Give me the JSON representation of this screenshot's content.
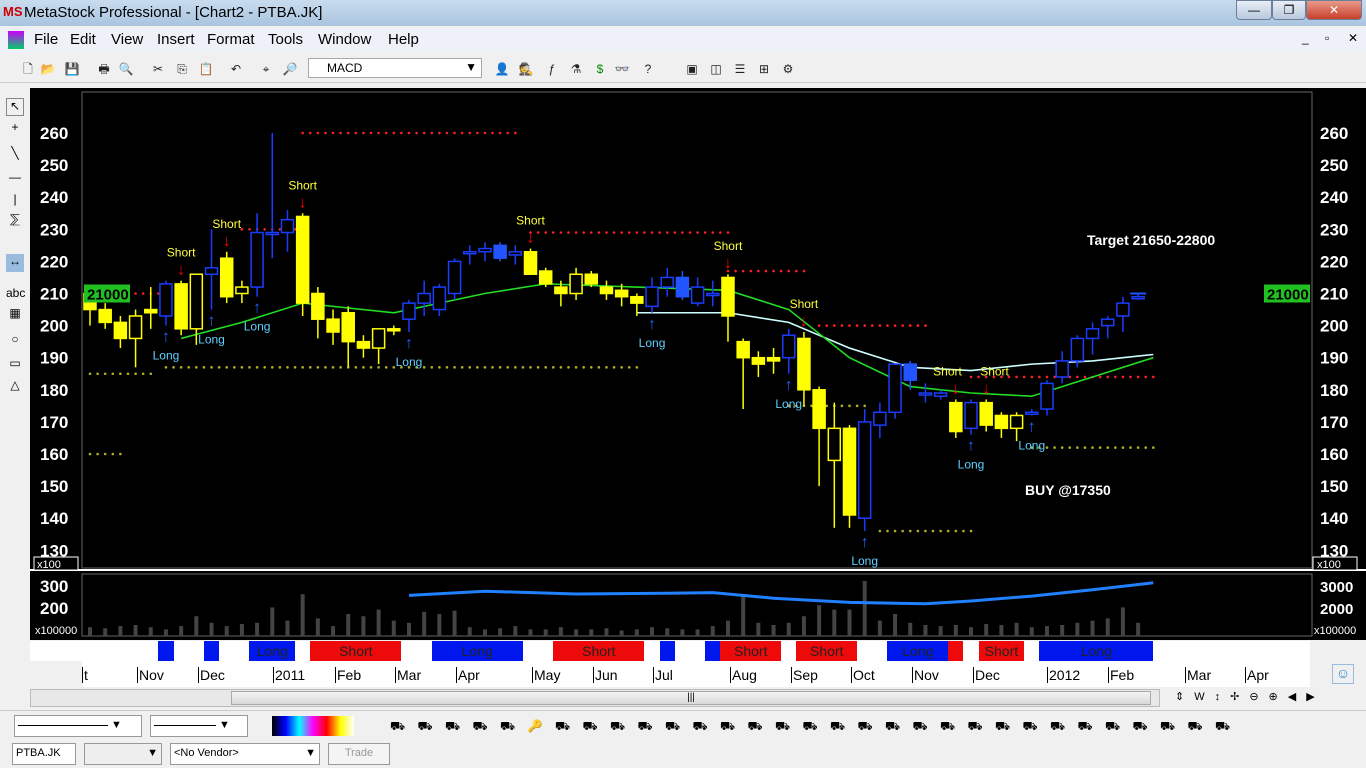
{
  "window": {
    "title": "MetaStock Professional - [Chart2 - PTBA.JK]",
    "min": "—",
    "max": "❐",
    "close": "✕"
  },
  "menu": [
    "File",
    "Edit",
    "View",
    "Insert",
    "Format",
    "Tools",
    "Window",
    "Help"
  ],
  "toolbar": {
    "indicator_select": "MACD",
    "icons": [
      "new-icon",
      "open-icon",
      "save-icon",
      "print-icon",
      "print-preview-icon",
      "cut-icon",
      "copy-icon",
      "paste-icon",
      "undo-icon",
      "crosshair-icon",
      "zoom-icon",
      "expert-icon",
      "explorer-icon",
      "function-icon",
      "system-tester-icon",
      "dollar-icon",
      "binoculars-icon",
      "help-pointer-icon",
      "cascade-icon",
      "tile-vertical-icon",
      "tile-horizontal-icon",
      "tile-grid-icon",
      "options-icon"
    ]
  },
  "chart": {
    "price_scale_label": "x100",
    "volume_scale_label": "x100000",
    "current_price": "21000",
    "price_ticks": [
      "260",
      "250",
      "240",
      "230",
      "220",
      "210",
      "200",
      "190",
      "180",
      "170",
      "160",
      "150",
      "140",
      "130"
    ],
    "volume_ticks_left": [
      "300",
      "200"
    ],
    "volume_ticks_right": [
      "3000",
      "2000"
    ],
    "annotations": {
      "target": "Target 21650-22800",
      "buy": "BUY @17350"
    },
    "colors": {
      "down_candle": "#ffff00",
      "up_candle": "#0040ff",
      "ma_green": "#22dd22",
      "ma_white": "#ccffff",
      "short": "#ff0000",
      "long": "#0050ff",
      "obv": "#2080ff"
    }
  },
  "chart_data": {
    "type": "candlestick",
    "ylim": [
      130,
      265
    ],
    "candles": [
      [
        210,
        211,
        200,
        205
      ],
      [
        205,
        207,
        199,
        201
      ],
      [
        201,
        203,
        193,
        196
      ],
      [
        196,
        205,
        187,
        203
      ],
      [
        204,
        212,
        199,
        205
      ],
      [
        203,
        214,
        200,
        213
      ],
      [
        213,
        214,
        197,
        199
      ],
      [
        199,
        216,
        194,
        216
      ],
      [
        216,
        230,
        205,
        218
      ],
      [
        221,
        223,
        207,
        209
      ],
      [
        210,
        214,
        207,
        212
      ],
      [
        212,
        235,
        209,
        229
      ],
      [
        229,
        260,
        221,
        229
      ],
      [
        229,
        236,
        223,
        233
      ],
      [
        234,
        235,
        203,
        207
      ],
      [
        210,
        212,
        196,
        202
      ],
      [
        202,
        205,
        194,
        198
      ],
      [
        204,
        206,
        187,
        195
      ],
      [
        195,
        197,
        190,
        193
      ],
      [
        193,
        198,
        188,
        199
      ],
      [
        199,
        200,
        197,
        199
      ],
      [
        202,
        208,
        198,
        207
      ],
      [
        207,
        214,
        203,
        210
      ],
      [
        205,
        213,
        203,
        212
      ],
      [
        210,
        221,
        208,
        220
      ],
      [
        223,
        225,
        219,
        223
      ],
      [
        224,
        226,
        220,
        223
      ],
      [
        225,
        226,
        220,
        221
      ],
      [
        223,
        225,
        219,
        222
      ],
      [
        223,
        224,
        216,
        216
      ],
      [
        217,
        218,
        212,
        213
      ],
      [
        212,
        214,
        206,
        210
      ],
      [
        210,
        218,
        208,
        216
      ],
      [
        216,
        217,
        212,
        213
      ],
      [
        212,
        214,
        208,
        210
      ],
      [
        211,
        213,
        206,
        209
      ],
      [
        209,
        210,
        203,
        207
      ],
      [
        206,
        215,
        204,
        212
      ],
      [
        212,
        218,
        209,
        215
      ],
      [
        215,
        217,
        208,
        209
      ],
      [
        212,
        215,
        206,
        207
      ],
      [
        210,
        214,
        206,
        210
      ],
      [
        215,
        216,
        195,
        203
      ],
      [
        195,
        196,
        174,
        190
      ],
      [
        190,
        192,
        184,
        188
      ],
      [
        189,
        193,
        185,
        190
      ],
      [
        190,
        199,
        185,
        197
      ],
      [
        196,
        198,
        175,
        180
      ],
      [
        180,
        181,
        150,
        168
      ],
      [
        168,
        176,
        137,
        158
      ],
      [
        168,
        169,
        137,
        141
      ],
      [
        140,
        174,
        136,
        170
      ],
      [
        169,
        176,
        165,
        173
      ],
      [
        173,
        188,
        171,
        188
      ],
      [
        188,
        189,
        180,
        183
      ],
      [
        179,
        182,
        176,
        179
      ],
      [
        179,
        180,
        177,
        178
      ],
      [
        176,
        177,
        165,
        167
      ],
      [
        168,
        177,
        166,
        176
      ],
      [
        176,
        177,
        167,
        169
      ],
      [
        172,
        173,
        165,
        168
      ],
      [
        168,
        173,
        164,
        172
      ],
      [
        173,
        174,
        172,
        173
      ],
      [
        174,
        183,
        172,
        182
      ],
      [
        184,
        192,
        182,
        189
      ],
      [
        189,
        197,
        187,
        196
      ],
      [
        196,
        201,
        191,
        199
      ],
      [
        200,
        203,
        196,
        202
      ],
      [
        203,
        209,
        198,
        207
      ],
      [
        209,
        210,
        208,
        209
      ]
    ],
    "candle_color": [
      "y",
      "y",
      "y",
      "yh",
      "y",
      "b",
      "y",
      "yh",
      "b",
      "y",
      "yh",
      "b",
      "b",
      "b",
      "y",
      "y",
      "y",
      "y",
      "y",
      "yh",
      "y",
      "b",
      "b",
      "b",
      "b",
      "b",
      "b",
      "bf",
      "b",
      "y",
      "y",
      "y",
      "yh",
      "y",
      "y",
      "y",
      "y",
      "b",
      "b",
      "bf",
      "b",
      "b",
      "y",
      "y",
      "y",
      "y",
      "b",
      "y",
      "y",
      "yh",
      "y",
      "b",
      "b",
      "b",
      "bf",
      "b",
      "b",
      "y",
      "b",
      "y",
      "y",
      "yh",
      "b",
      "b",
      "b",
      "b",
      "b",
      "b",
      "b",
      "b"
    ],
    "signals": [
      {
        "bar": 5,
        "type": "Long"
      },
      {
        "bar": 6,
        "type": "Short"
      },
      {
        "bar": 8,
        "type": "Long"
      },
      {
        "bar": 9,
        "type": "Short"
      },
      {
        "bar": 11,
        "type": "Long"
      },
      {
        "bar": 14,
        "type": "Short"
      },
      {
        "bar": 21,
        "type": "Long"
      },
      {
        "bar": 29,
        "type": "Short"
      },
      {
        "bar": 37,
        "type": "Long"
      },
      {
        "bar": 42,
        "type": "Short"
      },
      {
        "bar": 46,
        "type": "Long"
      },
      {
        "bar": 47,
        "type": "Short"
      },
      {
        "bar": 51,
        "type": "Long"
      },
      {
        "bar": 57,
        "type": "Short"
      },
      {
        "bar": 58,
        "type": "Long"
      },
      {
        "bar": 59,
        "type": "Short"
      },
      {
        "bar": 62,
        "type": "Long"
      }
    ],
    "stop_levels": [
      {
        "value": 210,
        "from": 0,
        "to": 5,
        "color": "red"
      },
      {
        "value": 230,
        "from": 10,
        "to": 14,
        "color": "red"
      },
      {
        "value": 260,
        "from": 14,
        "to": 28,
        "color": "red"
      },
      {
        "value": 229,
        "from": 29,
        "to": 42,
        "color": "red"
      },
      {
        "value": 217,
        "from": 42,
        "to": 47,
        "color": "red"
      },
      {
        "value": 200,
        "from": 48,
        "to": 55,
        "color": "red"
      },
      {
        "value": 184,
        "from": 58,
        "to": 70,
        "color": "red"
      },
      {
        "value": 187,
        "from": 5,
        "to": 36,
        "color": "yellow"
      },
      {
        "value": 160,
        "from": 0,
        "to": 2,
        "color": "yellow"
      },
      {
        "value": 175,
        "from": 46,
        "to": 51,
        "color": "yellow"
      },
      {
        "value": 136,
        "from": 52,
        "to": 58,
        "color": "yellow"
      },
      {
        "value": 162,
        "from": 62,
        "to": 70,
        "color": "yellow"
      },
      {
        "value": 185,
        "from": 0,
        "to": 4,
        "color": "yellow"
      }
    ],
    "ma_green": [
      [
        6,
        196
      ],
      [
        10,
        201
      ],
      [
        14,
        207
      ],
      [
        20,
        204
      ],
      [
        26,
        210
      ],
      [
        30,
        213
      ],
      [
        36,
        212
      ],
      [
        42,
        211
      ],
      [
        46,
        205
      ],
      [
        50,
        190
      ],
      [
        54,
        181
      ],
      [
        58,
        179
      ],
      [
        62,
        178
      ],
      [
        64,
        181
      ],
      [
        66,
        184
      ],
      [
        70,
        190
      ]
    ],
    "ma_white": [
      [
        36,
        204
      ],
      [
        42,
        204
      ],
      [
        46,
        201
      ],
      [
        50,
        193
      ],
      [
        54,
        187
      ],
      [
        58,
        186
      ],
      [
        62,
        188
      ],
      [
        66,
        189
      ],
      [
        70,
        191
      ]
    ],
    "volume": [
      40,
      35,
      45,
      50,
      40,
      30,
      45,
      90,
      60,
      45,
      55,
      60,
      130,
      70,
      190,
      80,
      45,
      100,
      90,
      120,
      70,
      60,
      110,
      100,
      115,
      40,
      30,
      35,
      45,
      30,
      30,
      40,
      30,
      30,
      35,
      25,
      30,
      40,
      35,
      30,
      30,
      45,
      70,
      180,
      60,
      50,
      60,
      90,
      140,
      120,
      120,
      250,
      70,
      100,
      60,
      50,
      45,
      50,
      40,
      55,
      50,
      60,
      40,
      45,
      50,
      60,
      70,
      80,
      130,
      60
    ],
    "obv": [
      [
        21,
        290
      ],
      [
        26,
        320
      ],
      [
        32,
        300
      ],
      [
        38,
        305
      ],
      [
        41,
        310
      ],
      [
        45,
        270
      ],
      [
        50,
        240
      ],
      [
        55,
        230
      ],
      [
        58,
        250
      ],
      [
        62,
        285
      ],
      [
        66,
        330
      ],
      [
        70,
        380
      ]
    ],
    "signal_band": [
      {
        "from": 4.5,
        "to": 5.5,
        "type": "long",
        "label": ""
      },
      {
        "from": 7.5,
        "to": 8.5,
        "type": "long",
        "label": ""
      },
      {
        "from": 10.5,
        "to": 13.5,
        "type": "long",
        "label": "Long"
      },
      {
        "from": 14.5,
        "to": 20.5,
        "type": "short",
        "label": "Short"
      },
      {
        "from": 22.5,
        "to": 28.5,
        "type": "long",
        "label": "Long"
      },
      {
        "from": 30.5,
        "to": 36.5,
        "type": "short",
        "label": "Short"
      },
      {
        "from": 37.5,
        "to": 38.5,
        "type": "long",
        "label": ""
      },
      {
        "from": 40.5,
        "to": 41.5,
        "type": "long",
        "label": ""
      },
      {
        "from": 41.5,
        "to": 45.5,
        "type": "short",
        "label": "Short"
      },
      {
        "from": 46.5,
        "to": 50.5,
        "type": "short",
        "label": "Short"
      },
      {
        "from": 52.5,
        "to": 56.5,
        "type": "long",
        "label": "Long"
      },
      {
        "from": 56.5,
        "to": 57.5,
        "type": "short",
        "label": ""
      },
      {
        "from": 58.5,
        "to": 61.5,
        "type": "short",
        "label": "Short"
      },
      {
        "from": 62.5,
        "to": 70,
        "type": "long",
        "label": "Long"
      }
    ],
    "x_labels": [
      "t",
      "Nov",
      "Dec",
      "2011",
      "Feb",
      "Mar",
      "Apr",
      "May",
      "Jun",
      "Jul",
      "Aug",
      "Sep",
      "Oct",
      "Nov",
      "Dec",
      "2012",
      "Feb",
      "Mar",
      "Apr"
    ]
  },
  "bottom": {
    "symbol": "PTBA.JK",
    "vendor": "<No Vendor>",
    "trade": "Trade"
  }
}
